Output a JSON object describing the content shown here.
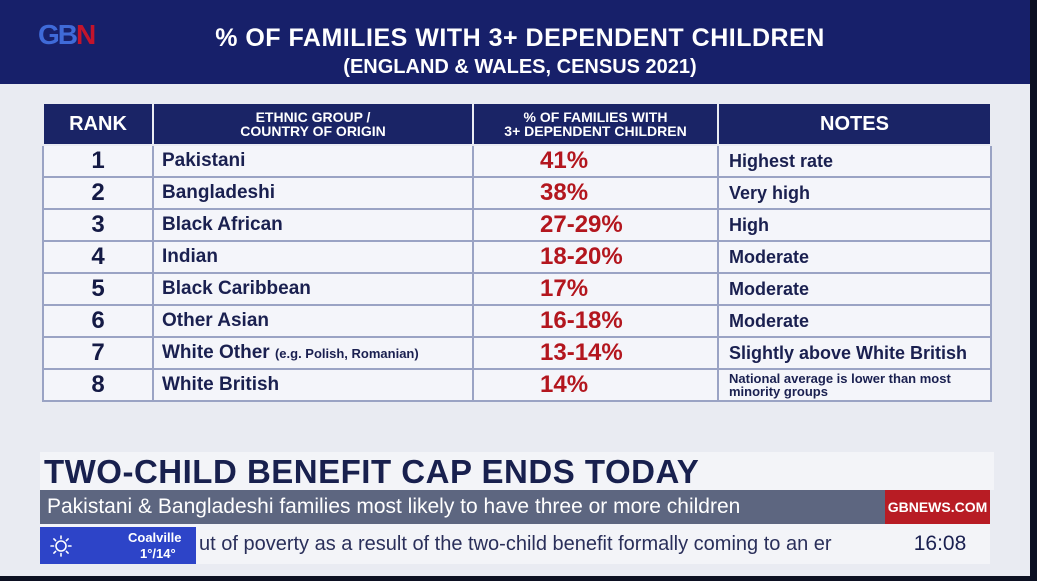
{
  "header": {
    "logo_part1": "GB",
    "logo_part2": "N",
    "title": "% OF FAMILIES WITH 3+ DEPENDENT CHILDREN",
    "subtitle": "(ENGLAND & WALES, CENSUS 2021)"
  },
  "table": {
    "headers": {
      "rank": "RANK",
      "group_line1": "ETHNIC GROUP /",
      "group_line2": "COUNTRY OF ORIGIN",
      "pct_line1": "% OF FAMILIES WITH",
      "pct_line2": "3+ DEPENDENT CHILDREN",
      "notes": "NOTES"
    },
    "rows": [
      {
        "rank": "1",
        "group": "Pakistani",
        "group_note": "",
        "pct": "41%",
        "note": "Highest rate"
      },
      {
        "rank": "2",
        "group": "Bangladeshi",
        "group_note": "",
        "pct": "38%",
        "note": "Very high"
      },
      {
        "rank": "3",
        "group": "Black African",
        "group_note": "",
        "pct": "27-29%",
        "note": "High"
      },
      {
        "rank": "4",
        "group": "Indian",
        "group_note": "",
        "pct": "18-20%",
        "note": "Moderate"
      },
      {
        "rank": "5",
        "group": "Black Caribbean",
        "group_note": "",
        "pct": "17%",
        "note": "Moderate"
      },
      {
        "rank": "6",
        "group": "Other Asian",
        "group_note": "",
        "pct": "16-18%",
        "note": "Moderate"
      },
      {
        "rank": "7",
        "group": "White Other",
        "group_note": "(e.g. Polish, Romanian)",
        "pct": "13-14%",
        "note": "Slightly above White British"
      },
      {
        "rank": "8",
        "group": "White British",
        "group_note": "",
        "pct": "14%",
        "note": "National average is lower than most minority groups"
      }
    ]
  },
  "lower_third": {
    "headline": "TWO-CHILD BENEFIT CAP ENDS TODAY",
    "strap": "Pakistani & Bangladeshi families most likely to have three or more children",
    "brand": "GBNEWS.COM",
    "ticker": "ut of poverty as a result of the two-child benefit formally coming to an er",
    "clock": "16:08"
  },
  "weather": {
    "icon": "sun-icon",
    "location": "Coalville",
    "temps": "1°/14°"
  }
}
